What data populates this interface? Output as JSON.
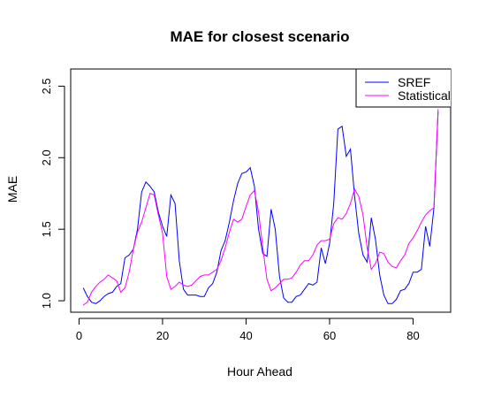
{
  "chart_data": {
    "type": "line",
    "title": "MAE for closest scenario",
    "xlabel": "Hour Ahead",
    "ylabel": "MAE",
    "xlim": [
      -2,
      89
    ],
    "ylim": [
      0.92,
      2.62
    ],
    "xticks": [
      0,
      20,
      40,
      60,
      80
    ],
    "yticks": [
      1.0,
      1.5,
      2.0,
      2.5
    ],
    "xtick_labels": [
      "0",
      "20",
      "40",
      "60",
      "80"
    ],
    "ytick_labels": [
      "1.0",
      "1.5",
      "2.0",
      "2.5"
    ],
    "grid": false,
    "legend": {
      "position": "top-right"
    },
    "x": [
      1,
      2,
      3,
      4,
      5,
      6,
      7,
      8,
      9,
      10,
      11,
      12,
      13,
      14,
      15,
      16,
      17,
      18,
      19,
      20,
      21,
      22,
      23,
      24,
      25,
      26,
      27,
      28,
      29,
      30,
      31,
      32,
      33,
      34,
      35,
      36,
      37,
      38,
      39,
      40,
      41,
      42,
      43,
      44,
      45,
      46,
      47,
      48,
      49,
      50,
      51,
      52,
      53,
      54,
      55,
      56,
      57,
      58,
      59,
      60,
      61,
      62,
      63,
      64,
      65,
      66,
      67,
      68,
      69,
      70,
      71,
      72,
      73,
      74,
      75,
      76,
      77,
      78,
      79,
      80,
      81,
      82,
      83,
      84,
      85,
      86
    ],
    "series": [
      {
        "name": "SREF",
        "color": "#0000ff",
        "values": [
          1.09,
          1.03,
          0.99,
          0.98,
          1.0,
          1.03,
          1.05,
          1.06,
          1.1,
          1.12,
          1.3,
          1.32,
          1.36,
          1.5,
          1.76,
          1.83,
          1.8,
          1.76,
          1.62,
          1.52,
          1.45,
          1.74,
          1.68,
          1.28,
          1.08,
          1.04,
          1.04,
          1.04,
          1.03,
          1.03,
          1.09,
          1.12,
          1.2,
          1.35,
          1.42,
          1.55,
          1.7,
          1.82,
          1.89,
          1.9,
          1.93,
          1.8,
          1.5,
          1.33,
          1.31,
          1.64,
          1.5,
          1.17,
          1.02,
          0.99,
          0.99,
          1.03,
          1.04,
          1.08,
          1.12,
          1.11,
          1.13,
          1.37,
          1.26,
          1.4,
          1.68,
          2.2,
          2.22,
          2.01,
          2.06,
          1.73,
          1.47,
          1.32,
          1.27,
          1.58,
          1.43,
          1.18,
          1.04,
          0.98,
          0.98,
          1.01,
          1.07,
          1.08,
          1.12,
          1.2,
          1.2,
          1.22,
          1.52,
          1.38,
          1.65,
          2.32
        ]
      },
      {
        "name": "Statistical",
        "color": "#ff00ff",
        "values": [
          0.97,
          0.99,
          1.06,
          1.1,
          1.13,
          1.15,
          1.18,
          1.16,
          1.14,
          1.06,
          1.09,
          1.2,
          1.36,
          1.48,
          1.55,
          1.65,
          1.75,
          1.74,
          1.6,
          1.47,
          1.17,
          1.08,
          1.1,
          1.13,
          1.11,
          1.1,
          1.11,
          1.14,
          1.17,
          1.18,
          1.18,
          1.2,
          1.22,
          1.28,
          1.37,
          1.48,
          1.57,
          1.55,
          1.57,
          1.66,
          1.74,
          1.77,
          1.62,
          1.37,
          1.15,
          1.07,
          1.09,
          1.12,
          1.15,
          1.15,
          1.16,
          1.2,
          1.25,
          1.28,
          1.28,
          1.32,
          1.39,
          1.42,
          1.42,
          1.43,
          1.54,
          1.58,
          1.57,
          1.61,
          1.68,
          1.78,
          1.73,
          1.6,
          1.37,
          1.22,
          1.26,
          1.34,
          1.33,
          1.27,
          1.24,
          1.23,
          1.28,
          1.32,
          1.4,
          1.44,
          1.49,
          1.55,
          1.6,
          1.63,
          1.65,
          2.34
        ]
      }
    ]
  }
}
